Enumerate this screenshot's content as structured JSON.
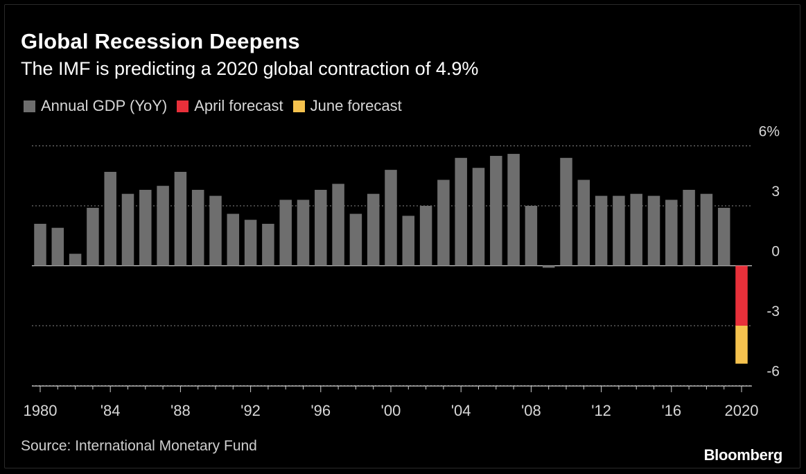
{
  "header": {
    "title": "Global Recession Deepens",
    "subtitle": "The IMF is predicting a 2020 global contraction of 4.9%"
  },
  "legend": [
    {
      "label": "Annual GDP (YoY)",
      "color": "#6e6e6e"
    },
    {
      "label": "April forecast",
      "color": "#e8303a"
    },
    {
      "label": "June forecast",
      "color": "#f5c24e"
    }
  ],
  "footer": {
    "source": "Source: International Monetary Fund",
    "brand": "Bloomberg"
  },
  "chart_data": {
    "type": "bar",
    "title": "Global Recession Deepens",
    "subtitle": "The IMF is predicting a 2020 global contraction of 4.9%",
    "xlabel": "",
    "ylabel": "",
    "ylim": [
      -6.2,
      6
    ],
    "y_ticks": [
      {
        "value": 6,
        "label": "6%"
      },
      {
        "value": 3,
        "label": "3"
      },
      {
        "value": 0,
        "label": "0"
      },
      {
        "value": -3,
        "label": "-3"
      },
      {
        "value": -6,
        "label": "-6"
      }
    ],
    "x_ticks": [
      {
        "year": 1980,
        "label": "1980"
      },
      {
        "year": 1984,
        "label": "'84"
      },
      {
        "year": 1988,
        "label": "'88"
      },
      {
        "year": 1992,
        "label": "'92"
      },
      {
        "year": 1996,
        "label": "'96"
      },
      {
        "year": 2000,
        "label": "'00"
      },
      {
        "year": 2004,
        "label": "'04"
      },
      {
        "year": 2008,
        "label": "'08"
      },
      {
        "year": 2012,
        "label": "'12"
      },
      {
        "year": 2016,
        "label": "'16"
      },
      {
        "year": 2020,
        "label": "2020"
      }
    ],
    "grid": true,
    "legend_position": "top-left",
    "series": [
      {
        "name": "Annual GDP (YoY)",
        "color": "#6e6e6e",
        "years": [
          1980,
          1981,
          1982,
          1983,
          1984,
          1985,
          1986,
          1987,
          1988,
          1989,
          1990,
          1991,
          1992,
          1993,
          1994,
          1995,
          1996,
          1997,
          1998,
          1999,
          2000,
          2001,
          2002,
          2003,
          2004,
          2005,
          2006,
          2007,
          2008,
          2009,
          2010,
          2011,
          2012,
          2013,
          2014,
          2015,
          2016,
          2017,
          2018,
          2019
        ],
        "values": [
          2.1,
          1.9,
          0.6,
          2.9,
          4.7,
          3.6,
          3.8,
          4.0,
          4.7,
          3.8,
          3.5,
          2.6,
          2.3,
          2.1,
          3.3,
          3.3,
          3.8,
          4.1,
          2.6,
          3.6,
          4.8,
          2.5,
          3.0,
          4.3,
          5.4,
          4.9,
          5.5,
          5.6,
          3.0,
          -0.1,
          5.4,
          4.3,
          3.5,
          3.5,
          3.6,
          3.5,
          3.3,
          3.8,
          3.6,
          2.9
        ]
      },
      {
        "name": "April forecast",
        "color": "#e8303a",
        "years": [
          2020
        ],
        "values": [
          -3.0
        ]
      },
      {
        "name": "June forecast",
        "color": "#f5c24e",
        "years": [
          2020
        ],
        "values": [
          -4.9
        ]
      }
    ]
  }
}
